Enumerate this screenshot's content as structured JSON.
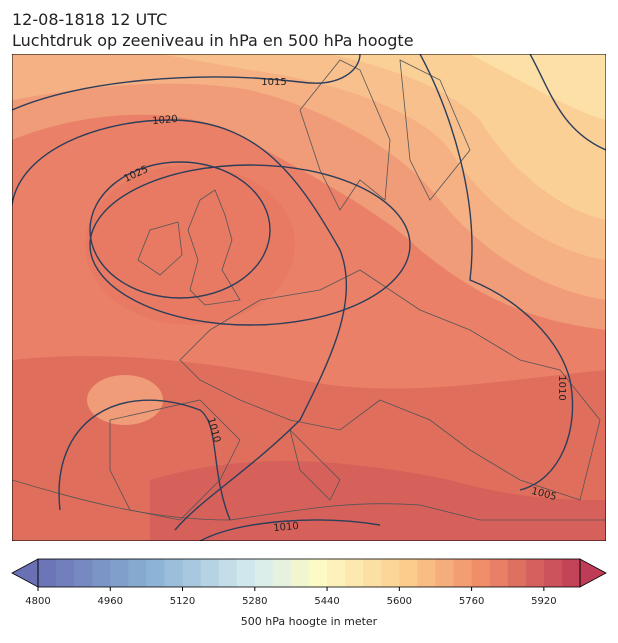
{
  "header": {
    "title_line1": "12-08-1818 12 UTC",
    "title_line2": "Luchtdruk op zeeniveau in hPa en 500 hPa hoogte"
  },
  "contour_labels": [
    1015,
    1020,
    1025,
    1010,
    1010,
    1010,
    1005
  ],
  "colorbar": {
    "lim": [
      4800,
      6000
    ],
    "step": 40,
    "colormap": "RdYlBu_r",
    "ticks": [
      4800,
      4960,
      5120,
      5280,
      5440,
      5600,
      5760,
      5920
    ],
    "label": "500 hPa hoogte in meter"
  }
}
